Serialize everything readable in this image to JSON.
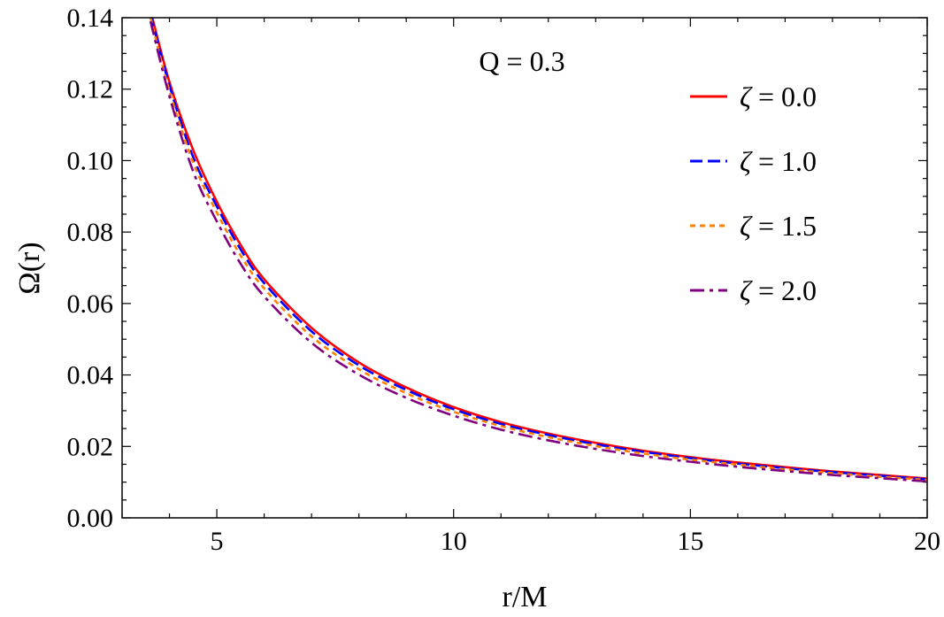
{
  "chart_data": {
    "type": "line",
    "xlabel": "r/M",
    "ylabel": "Ω(r)",
    "annotation": "Q = 0.3",
    "xlim": [
      3,
      20
    ],
    "ylim": [
      0,
      0.14
    ],
    "x_ticks": [
      5,
      10,
      15,
      20
    ],
    "x_tick_labels": [
      "5",
      "10",
      "15",
      "20"
    ],
    "y_ticks": [
      0.0,
      0.02,
      0.04,
      0.06,
      0.08,
      0.1,
      0.12,
      0.14
    ],
    "y_tick_labels": [
      "0.00",
      "0.02",
      "0.04",
      "0.06",
      "0.08",
      "0.10",
      "0.12",
      "0.14"
    ],
    "grid": false,
    "legend_position": "top-right",
    "x": [
      3.6,
      4,
      4.5,
      5,
      5.5,
      6,
      7,
      8,
      9,
      10,
      11,
      12,
      13,
      14,
      15,
      16,
      17,
      18,
      19,
      20
    ],
    "series": [
      {
        "name": "ζ = 0.0",
        "legend_symbol": "ζ",
        "legend_value": "= 0.0",
        "color": "#ff0000",
        "dash": "solid",
        "values": [
          0.142,
          0.122,
          0.103,
          0.0885,
          0.0765,
          0.0668,
          0.0532,
          0.0435,
          0.0365,
          0.031,
          0.0268,
          0.0236,
          0.021,
          0.0188,
          0.017,
          0.0155,
          0.0142,
          0.013,
          0.012,
          0.011
        ]
      },
      {
        "name": "ζ = 1.0",
        "legend_symbol": "ζ",
        "legend_value": "= 1.0",
        "color": "#0000ff",
        "dash": "dashed",
        "values": [
          0.141,
          0.121,
          0.101,
          0.0872,
          0.0752,
          0.0657,
          0.0522,
          0.0427,
          0.0358,
          0.0304,
          0.0263,
          0.0232,
          0.0206,
          0.0185,
          0.0167,
          0.0152,
          0.0139,
          0.0128,
          0.0118,
          0.0108
        ]
      },
      {
        "name": "ζ = 1.5",
        "legend_symbol": "ζ",
        "legend_value": "= 1.5",
        "color": "#ff7f00",
        "dash": "dotted",
        "values": [
          0.14,
          0.1195,
          0.0995,
          0.0855,
          0.0735,
          0.0642,
          0.0508,
          0.0416,
          0.0349,
          0.0297,
          0.0257,
          0.0226,
          0.0201,
          0.018,
          0.0163,
          0.0149,
          0.0136,
          0.0125,
          0.0115,
          0.0106
        ]
      },
      {
        "name": "ζ = 2.0",
        "legend_symbol": "ζ",
        "legend_value": "= 2.0",
        "color": "#800080",
        "dash": "dashdot",
        "values": [
          0.139,
          0.118,
          0.097,
          0.083,
          0.0712,
          0.062,
          0.049,
          0.0401,
          0.0336,
          0.0286,
          0.0247,
          0.0217,
          0.0193,
          0.0173,
          0.0157,
          0.0143,
          0.0131,
          0.012,
          0.0111,
          0.0102
        ]
      }
    ]
  }
}
